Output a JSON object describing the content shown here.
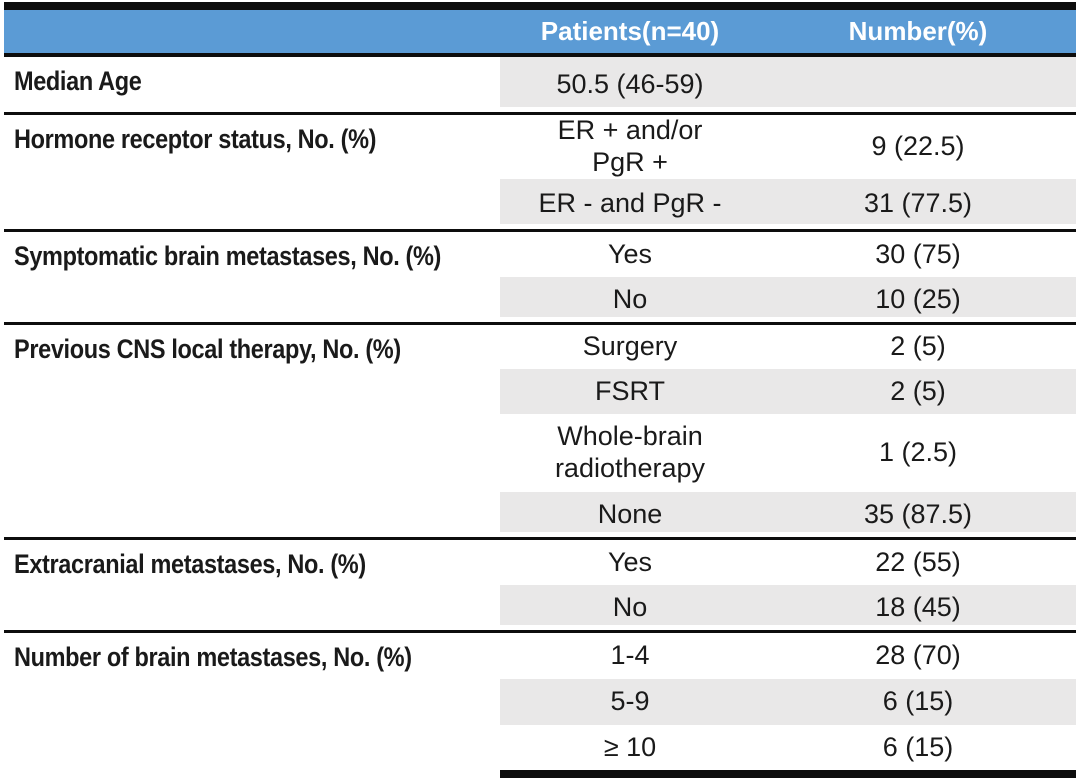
{
  "colors": {
    "header_bg": "#5B9BD5",
    "header_text": "#FFFFFF",
    "row_shade": "#E9E8E8",
    "rule": "#0D0D0D",
    "text": "#1A1A1A",
    "page_bg": "#FFFFFF"
  },
  "table": {
    "header": {
      "patients": "Patients(n=40)",
      "number": "Number(%)"
    },
    "sections": [
      {
        "label": "Median Age",
        "rows": [
          {
            "value": "50.5 (46-59)",
            "number": ""
          }
        ]
      },
      {
        "label": "Hormone receptor status, No. (%)",
        "rows": [
          {
            "value": "ER + and/or\nPgR +",
            "number": "9 (22.5)"
          },
          {
            "value": "ER - and PgR -",
            "number": "31 (77.5)"
          }
        ]
      },
      {
        "label": "Symptomatic brain metastases, No. (%)",
        "rows": [
          {
            "value": "Yes",
            "number": "30 (75)"
          },
          {
            "value": "No",
            "number": "10 (25)"
          }
        ]
      },
      {
        "label": "Previous CNS local therapy, No. (%)",
        "rows": [
          {
            "value": "Surgery",
            "number": "2 (5)"
          },
          {
            "value": "FSRT",
            "number": "2 (5)"
          },
          {
            "value": "Whole-brain\nradiotherapy",
            "number": "1 (2.5)"
          },
          {
            "value": "None",
            "number": "35 (87.5)"
          }
        ]
      },
      {
        "label": "Extracranial metastases, No. (%)",
        "rows": [
          {
            "value": "Yes",
            "number": "22 (55)"
          },
          {
            "value": "No",
            "number": "18 (45)"
          }
        ]
      },
      {
        "label": "Number of brain metastases, No. (%)",
        "rows": [
          {
            "value": "1-4",
            "number": "28 (70)"
          },
          {
            "value": "5-9",
            "number": "6 (15)"
          },
          {
            "value": "≥ 10",
            "number": "6 (15)"
          }
        ]
      }
    ]
  }
}
